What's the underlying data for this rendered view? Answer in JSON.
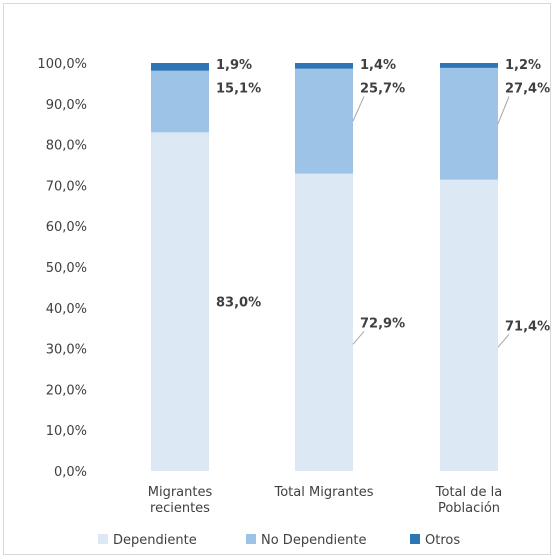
{
  "chart_data": {
    "type": "bar",
    "stacked": true,
    "categories": [
      "Migrantes recientes",
      "Total Migrantes",
      "Total de la Población"
    ],
    "category_lines": [
      [
        "Migrantes",
        "recientes"
      ],
      [
        "Total Migrantes"
      ],
      [
        "Total de la",
        "Población"
      ]
    ],
    "series": [
      {
        "name": "Dependiente",
        "values": [
          83.0,
          72.9,
          71.4
        ],
        "labels": [
          "83,0%",
          "72,9%",
          "71,4%"
        ],
        "color": "#dde8f5"
      },
      {
        "name": "No Dependiente",
        "values": [
          15.1,
          25.7,
          27.4
        ],
        "labels": [
          "15,1%",
          "25,7%",
          "27,4%"
        ],
        "color": "#9dc3e6"
      },
      {
        "name": "Otros",
        "values": [
          1.9,
          1.4,
          1.2
        ],
        "labels": [
          "1,9%",
          "1,4%",
          "1,2%"
        ],
        "color": "#2e75b6"
      }
    ],
    "ylim": [
      0,
      100
    ],
    "yticks": [
      0,
      10,
      20,
      30,
      40,
      50,
      60,
      70,
      80,
      90,
      100
    ],
    "ytick_labels": [
      "0,0%",
      "10,0%",
      "20,0%",
      "30,0%",
      "40,0%",
      "50,0%",
      "60,0%",
      "70,0%",
      "80,0%",
      "90,0%",
      "100,0%"
    ],
    "grid": false,
    "legend_position": "bottom"
  }
}
